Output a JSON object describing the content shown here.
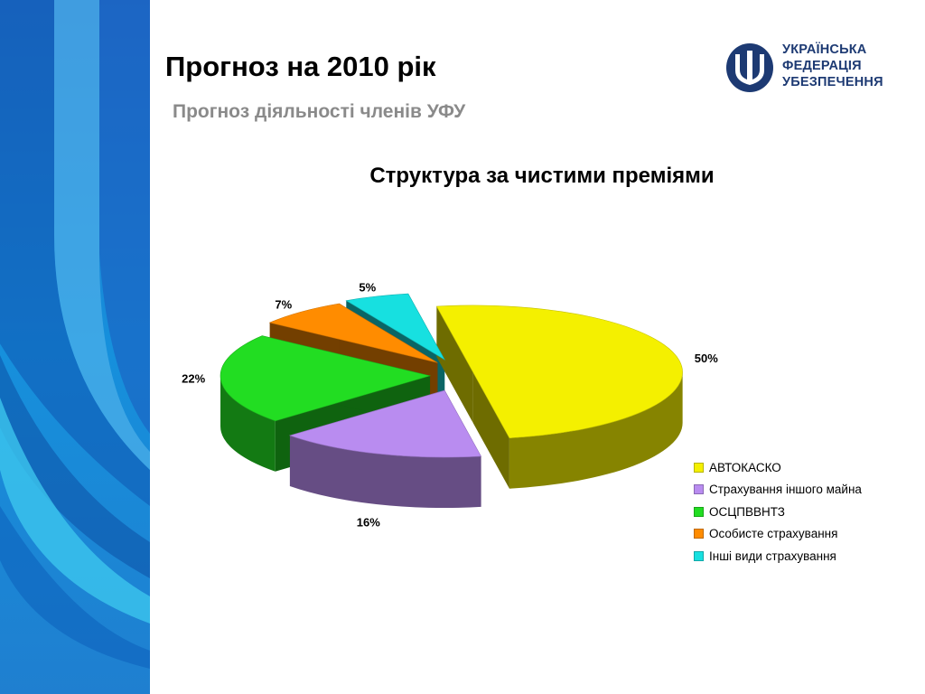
{
  "slide": {
    "title": "Прогноз на 2010 рік",
    "subtitle": "Прогноз діяльності членів УФУ"
  },
  "logo": {
    "line1": "УКРАЇНСЬКА",
    "line2": "ФЕДЕРАЦІЯ",
    "line3": "УБЕЗПЕЧЕННЯ",
    "icon": "trident-icon",
    "color": "#1d3a73"
  },
  "chart_data": {
    "type": "pie",
    "style": "3d-exploded",
    "title": "Структура за чистими преміями",
    "categories": [
      "АВТОКАСКО",
      "Страхування іншого майна",
      "ОСЦПВВНТЗ",
      "Особисте страхування",
      "Інші види страхування"
    ],
    "values": [
      50,
      16,
      22,
      7,
      5
    ],
    "data_labels": [
      "50%",
      "16%",
      "22%",
      "7%",
      "5%"
    ],
    "colors": [
      "#f4f000",
      "#b98cf0",
      "#22dd22",
      "#ff8c00",
      "#17e0e0"
    ],
    "legend_position": "bottom-right"
  }
}
